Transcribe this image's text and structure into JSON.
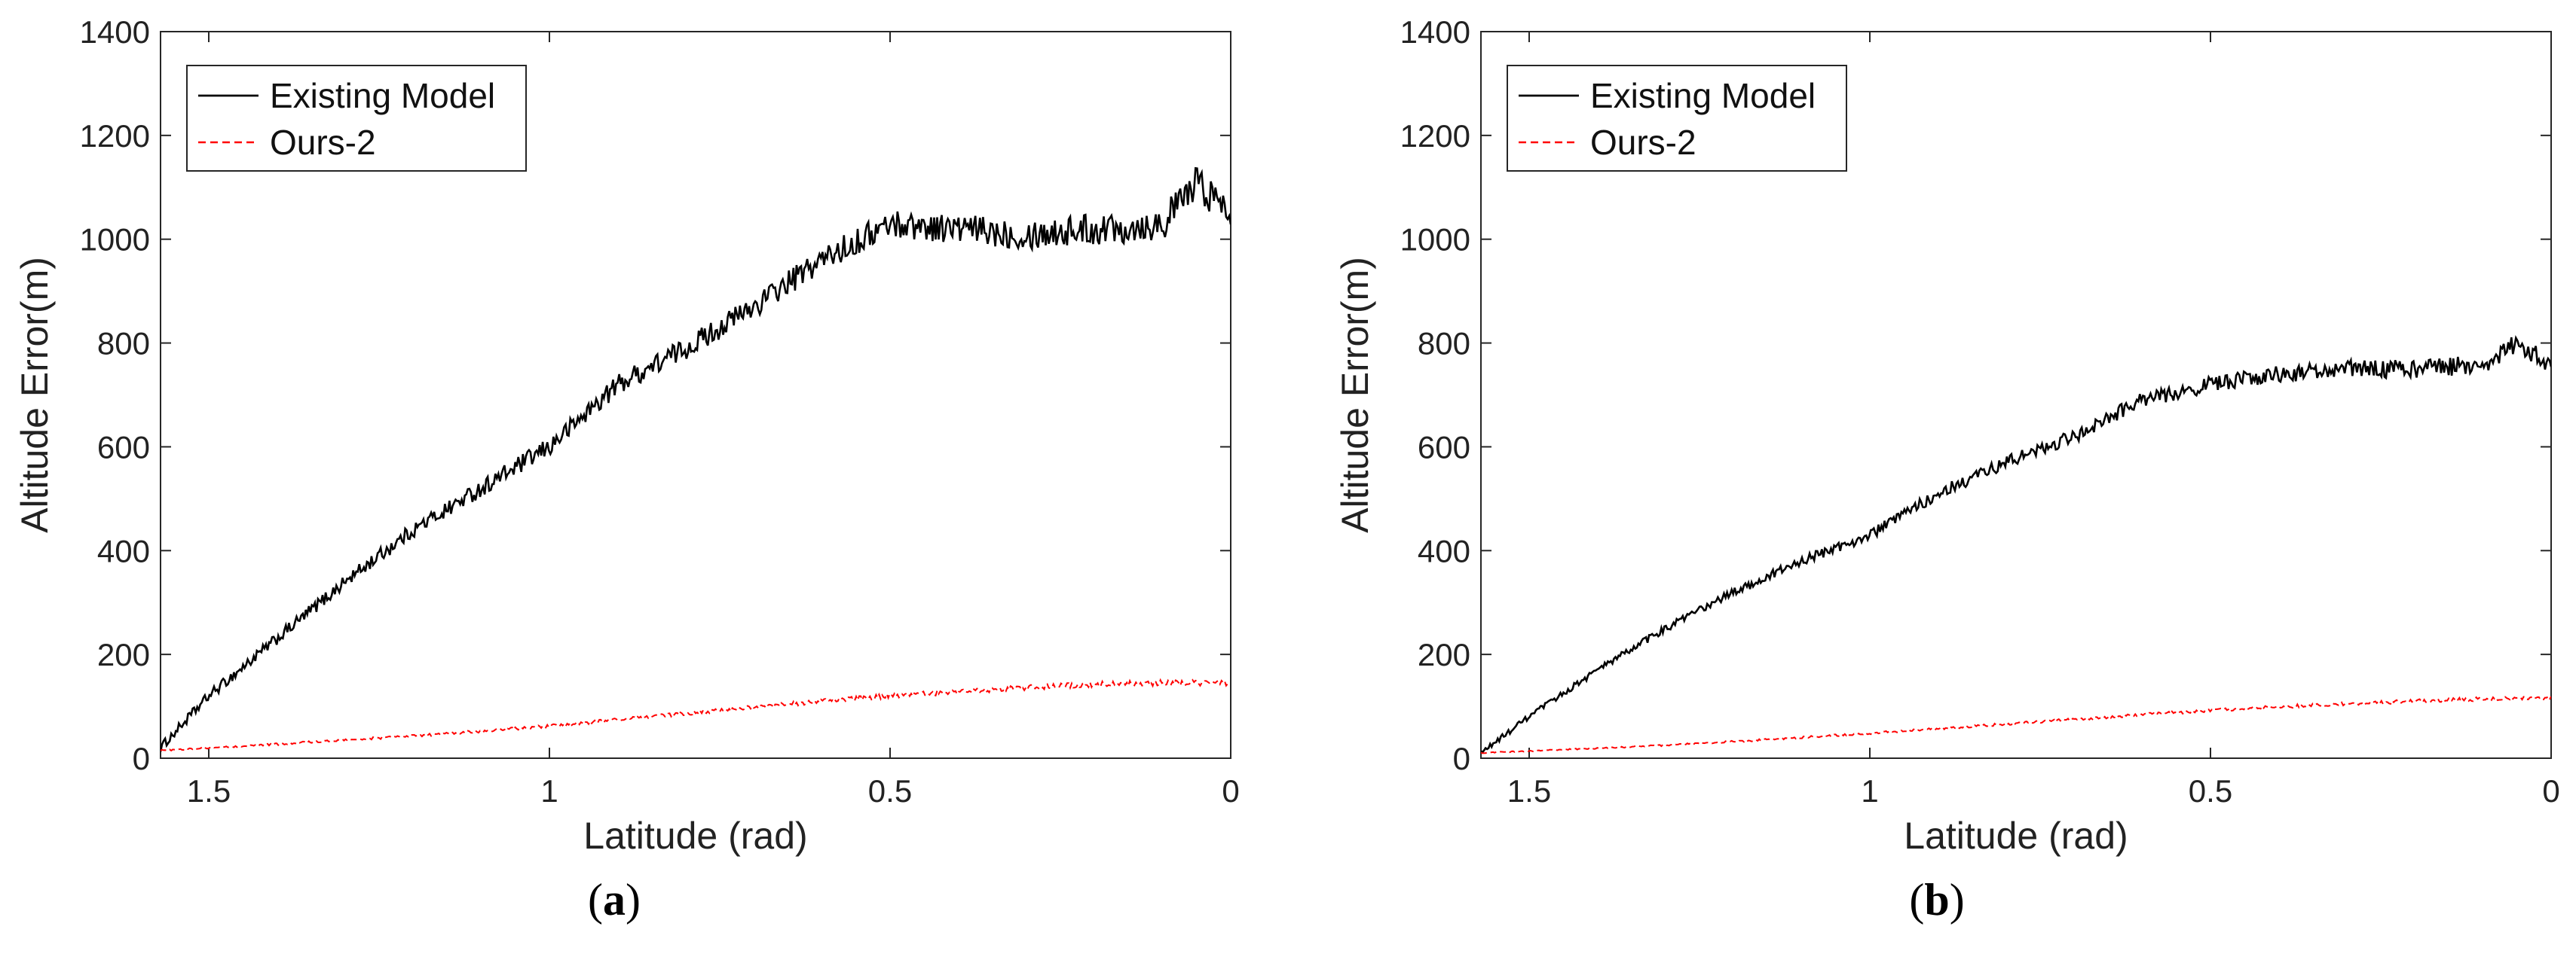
{
  "chart_data": [
    {
      "type": "line",
      "panel_label": "a",
      "title": "",
      "xlabel": "Latitude (rad)",
      "ylabel": "Altitude Error(m)",
      "xlim": [
        1.5708,
        0
      ],
      "ylim": [
        0,
        1400
      ],
      "x_reversed": true,
      "xticks": [
        1.5,
        1,
        0.5,
        0
      ],
      "xtick_labels": [
        "1.5",
        "1",
        "0.5",
        "0"
      ],
      "yticks": [
        0,
        200,
        400,
        600,
        800,
        1000,
        1200,
        1400
      ],
      "ytick_labels": [
        "0",
        "200",
        "400",
        "600",
        "800",
        "1000",
        "1200",
        "1400"
      ],
      "legend_position": "top-left",
      "series": [
        {
          "name": "Existing Model",
          "color": "#000000",
          "style": "solid",
          "x": [
            1.5708,
            1.5,
            1.4,
            1.3,
            1.2,
            1.1,
            1.0,
            0.9,
            0.8,
            0.7,
            0.6,
            0.5,
            0.4,
            0.3,
            0.2,
            0.1,
            0.05,
            0.0
          ],
          "y": [
            20,
            120,
            230,
            340,
            440,
            520,
            600,
            720,
            790,
            870,
            960,
            1030,
            1020,
            1010,
            1020,
            1030,
            1110,
            1050
          ],
          "noise": 35
        },
        {
          "name": "Ours-2",
          "color": "#ff0000",
          "style": "dashed",
          "x": [
            1.5708,
            1.5,
            1.4,
            1.3,
            1.2,
            1.1,
            1.0,
            0.9,
            0.8,
            0.7,
            0.6,
            0.5,
            0.4,
            0.3,
            0.2,
            0.1,
            0.0
          ],
          "y": [
            15,
            20,
            27,
            35,
            43,
            52,
            62,
            74,
            86,
            98,
            110,
            120,
            128,
            136,
            142,
            145,
            145
          ],
          "noise": 6
        }
      ]
    },
    {
      "type": "line",
      "panel_label": "b",
      "title": "",
      "xlabel": "Latitude (rad)",
      "ylabel": "Altitude Error(m)",
      "xlim": [
        1.5708,
        0
      ],
      "ylim": [
        0,
        1400
      ],
      "x_reversed": true,
      "xticks": [
        1.5,
        1,
        0.5,
        0
      ],
      "xtick_labels": [
        "1.5",
        "1",
        "0.5",
        "0"
      ],
      "yticks": [
        0,
        200,
        400,
        600,
        800,
        1000,
        1200,
        1400
      ],
      "ytick_labels": [
        "0",
        "200",
        "400",
        "600",
        "800",
        "1000",
        "1200",
        "1400"
      ],
      "legend_position": "top-left",
      "series": [
        {
          "name": "Existing Model",
          "color": "#000000",
          "style": "solid",
          "x": [
            1.5708,
            1.5,
            1.4,
            1.3,
            1.2,
            1.1,
            1.0,
            0.9,
            0.8,
            0.7,
            0.6,
            0.5,
            0.4,
            0.3,
            0.2,
            0.1,
            0.05,
            0.0
          ],
          "y": [
            10,
            80,
            170,
            250,
            320,
            380,
            430,
            510,
            570,
            620,
            690,
            720,
            740,
            750,
            750,
            760,
            800,
            760
          ],
          "noise": 20
        },
        {
          "name": "Ours-2",
          "color": "#ff0000",
          "style": "dashed",
          "x": [
            1.5708,
            1.5,
            1.4,
            1.3,
            1.2,
            1.1,
            1.0,
            0.9,
            0.8,
            0.7,
            0.6,
            0.5,
            0.4,
            0.3,
            0.2,
            0.1,
            0.0
          ],
          "y": [
            10,
            14,
            19,
            25,
            32,
            40,
            48,
            57,
            66,
            75,
            84,
            92,
            99,
            105,
            110,
            114,
            115
          ],
          "noise": 4
        }
      ]
    }
  ]
}
